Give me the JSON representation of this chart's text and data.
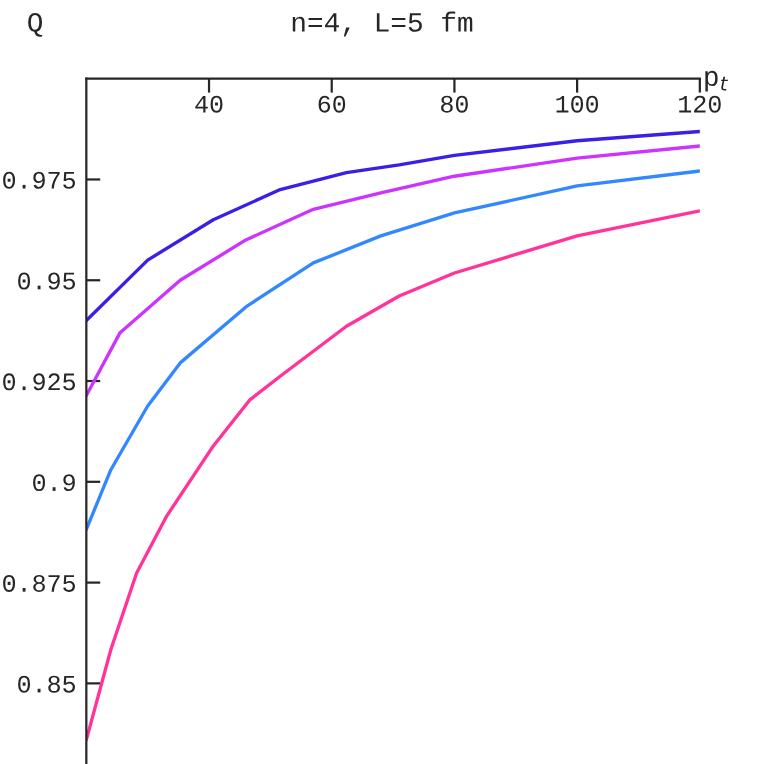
{
  "chart_data": {
    "type": "line",
    "title": "n=4, L=5 fm",
    "xlabel": "p$_{t}$",
    "ylabel": "Q",
    "xlim": [
      20,
      120
    ],
    "ylim": [
      0.83,
      1.0
    ],
    "xticks": [
      40,
      60,
      80,
      100,
      120
    ],
    "yticks": [
      0.85,
      0.875,
      0.9,
      0.925,
      0.95,
      0.975
    ],
    "grid": false,
    "legend": false,
    "marker": "none",
    "line_style": "solid",
    "series": [
      {
        "color": "#3a1fe6",
        "x": [
          20,
          30,
          40.7,
          51.6,
          62.4,
          71,
          80,
          100,
          120
        ],
        "values": [
          0.94,
          0.955,
          0.965,
          0.9725,
          0.9767,
          0.9786,
          0.981,
          0.9846,
          0.9869
        ]
      },
      {
        "color": "#cc33ff",
        "x": [
          20,
          25.5,
          35.3,
          46,
          57,
          68,
          80,
          100,
          120
        ],
        "values": [
          0.9214,
          0.937,
          0.95,
          0.96,
          0.9676,
          0.9717,
          0.9758,
          0.9803,
          0.9833
        ]
      },
      {
        "color": "#3388ff",
        "x": [
          20,
          24,
          30,
          35.3,
          46.2,
          57,
          68,
          80,
          100,
          120
        ],
        "values": [
          0.8882,
          0.903,
          0.9188,
          0.9295,
          0.9436,
          0.9543,
          0.961,
          0.9667,
          0.9734,
          0.9771
        ]
      },
      {
        "color": "#ff3399",
        "x": [
          20,
          24,
          28.2,
          33.1,
          40.7,
          46.7,
          51.6,
          62.4,
          71,
          80,
          100,
          120
        ],
        "values": [
          0.836,
          0.8584,
          0.8774,
          0.8915,
          0.9089,
          0.9204,
          0.9262,
          0.9386,
          0.9461,
          0.9518,
          0.961,
          0.9672
        ]
      }
    ]
  }
}
